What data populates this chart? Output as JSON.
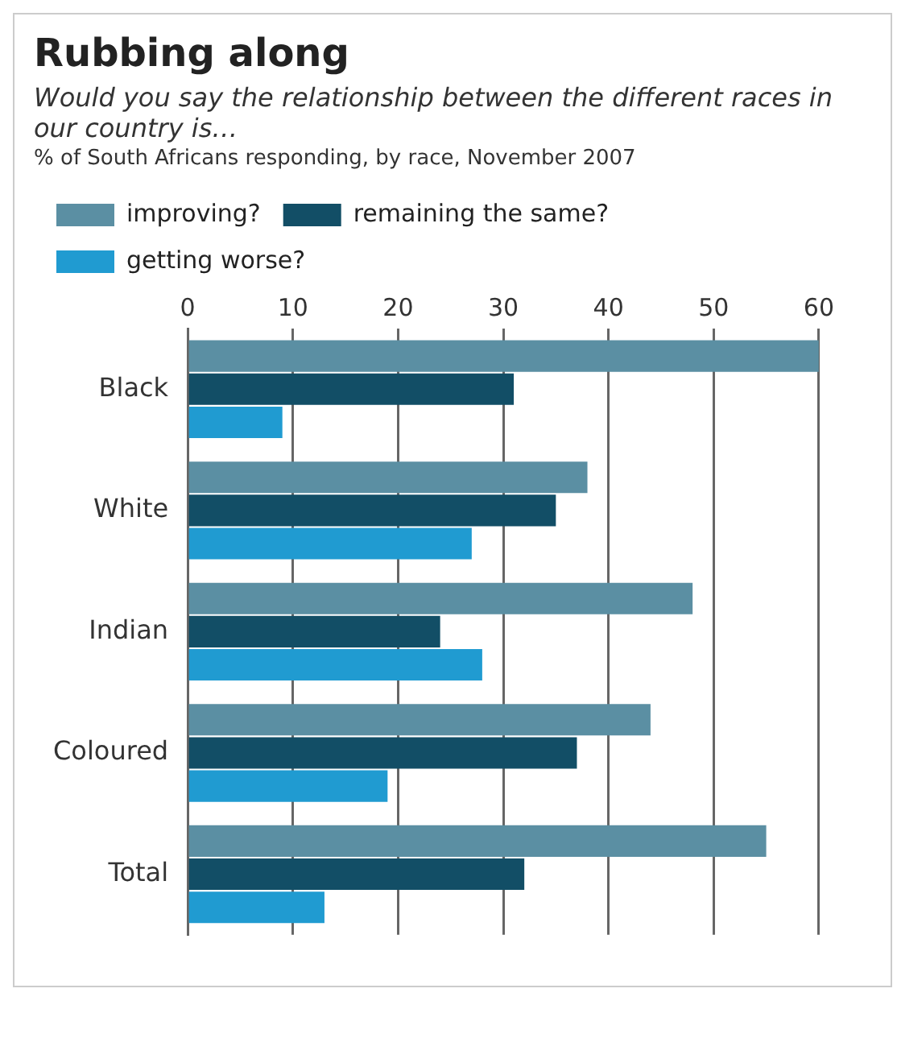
{
  "chart_data": {
    "type": "bar",
    "orientation": "horizontal",
    "title": "Rubbing along",
    "subtitle": "Would you say the relationship between the different races in our country is…",
    "annotations": [
      "% of South Africans responding, by race, November 2007"
    ],
    "categories": [
      "Black",
      "White",
      "Indian",
      "Coloured",
      "Total"
    ],
    "series": [
      {
        "name": "improving?",
        "color": "#5b8fa3",
        "values": [
          60,
          38,
          48,
          44,
          55
        ]
      },
      {
        "name": "remaining the same?",
        "color": "#124e66",
        "values": [
          31,
          35,
          24,
          37,
          32
        ]
      },
      {
        "name": "getting worse?",
        "color": "#209bd1",
        "values": [
          9,
          27,
          28,
          19,
          13
        ]
      }
    ],
    "xlim": [
      0,
      60
    ],
    "xticks": [
      0,
      10,
      20,
      30,
      40,
      50,
      60
    ],
    "grid": "x",
    "legend": "top"
  }
}
